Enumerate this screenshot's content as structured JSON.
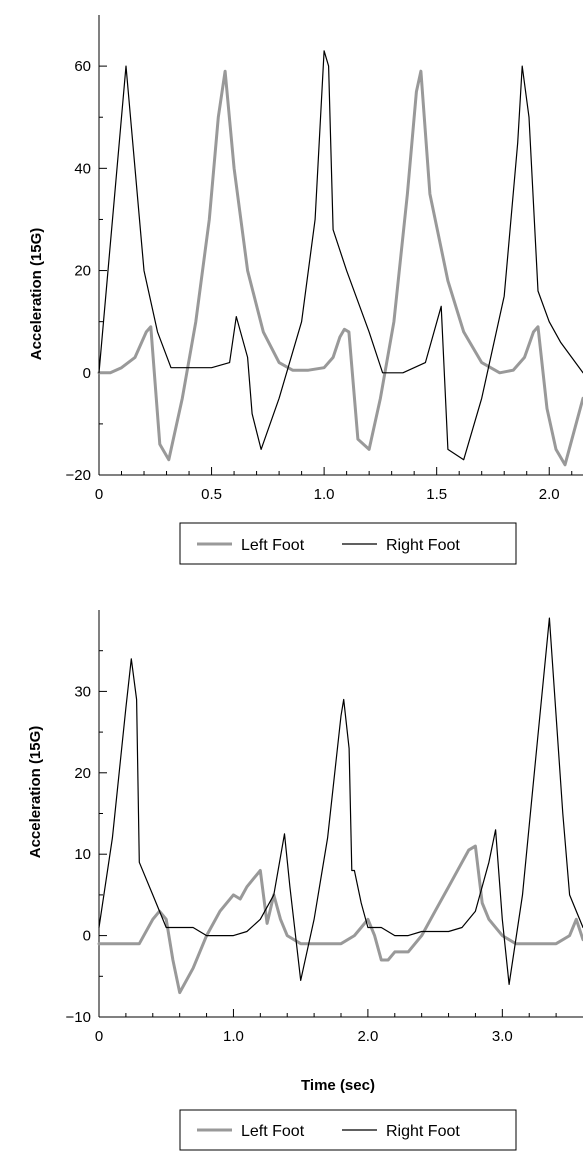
{
  "chart_data": [
    {
      "type": "line",
      "title": "",
      "xlabel": "",
      "ylabel": "Acceleration (15G)",
      "xlim": [
        0,
        2.15
      ],
      "ylim": [
        -20,
        70
      ],
      "grid": false,
      "legend_position": "bottom",
      "x_ticks": [
        0,
        0.5,
        1.0,
        1.5,
        2.0
      ],
      "x_tick_labels": [
        "0",
        "0.5",
        "1.0",
        "1.5",
        "2.0"
      ],
      "y_ticks": [
        -20,
        0,
        20,
        40,
        60
      ],
      "y_tick_labels": [
        "−20",
        "0",
        "20",
        "40",
        "60"
      ],
      "series": [
        {
          "name": "Left Foot",
          "color": "#999999",
          "x": [
            0,
            0.05,
            0.1,
            0.16,
            0.21,
            0.23,
            0.27,
            0.31,
            0.37,
            0.43,
            0.49,
            0.53,
            0.56,
            0.6,
            0.66,
            0.73,
            0.8,
            0.86,
            0.93,
            1.0,
            1.04,
            1.07,
            1.09,
            1.11,
            1.15,
            1.2,
            1.25,
            1.31,
            1.37,
            1.41,
            1.43,
            1.47,
            1.55,
            1.62,
            1.7,
            1.78,
            1.84,
            1.89,
            1.93,
            1.95,
            1.99,
            2.03,
            2.07,
            2.15
          ],
          "y": [
            0,
            0,
            1,
            3,
            8,
            9,
            -14,
            -17,
            -5,
            10,
            30,
            50,
            59,
            40,
            20,
            8,
            2,
            0.5,
            0.5,
            1,
            3,
            7,
            8.5,
            8,
            -13,
            -15,
            -5,
            10,
            35,
            55,
            59,
            35,
            18,
            8,
            2,
            0,
            0.5,
            3,
            8,
            9,
            -7,
            -15,
            -18,
            -5
          ]
        },
        {
          "name": "Right Foot",
          "color": "#000000",
          "x": [
            0,
            0.06,
            0.12,
            0.16,
            0.2,
            0.26,
            0.32,
            0.4,
            0.5,
            0.58,
            0.61,
            0.66,
            0.68,
            0.72,
            0.8,
            0.9,
            0.96,
            1.0,
            1.02,
            1.04,
            1.1,
            1.2,
            1.26,
            1.35,
            1.45,
            1.52,
            1.55,
            1.62,
            1.7,
            1.8,
            1.86,
            1.88,
            1.91,
            1.95,
            2.0,
            2.05,
            2.1,
            2.15
          ],
          "y": [
            0,
            30,
            60,
            40,
            20,
            8,
            1,
            1,
            1,
            2,
            11,
            3,
            -8,
            -15,
            -5,
            10,
            30,
            63,
            60,
            28,
            20,
            8,
            0,
            0,
            2,
            13,
            -15,
            -17,
            -5,
            15,
            45,
            60,
            50,
            16,
            10,
            6,
            3,
            0
          ]
        }
      ]
    },
    {
      "type": "line",
      "title": "",
      "xlabel": "Time (sec)",
      "ylabel": "Acceleration (15G)",
      "xlim": [
        0,
        3.6
      ],
      "ylim": [
        -10,
        40
      ],
      "grid": false,
      "legend_position": "bottom",
      "x_ticks": [
        0,
        1.0,
        2.0,
        3.0
      ],
      "x_tick_labels": [
        "0",
        "1.0",
        "2.0",
        "3.0"
      ],
      "y_ticks": [
        -10,
        0,
        10,
        20,
        30
      ],
      "y_tick_labels": [
        "−10",
        "0",
        "10",
        "20",
        "30"
      ],
      "series": [
        {
          "name": "Left Foot",
          "color": "#999999",
          "x": [
            0,
            0.2,
            0.3,
            0.4,
            0.45,
            0.5,
            0.55,
            0.6,
            0.7,
            0.8,
            0.9,
            1.0,
            1.05,
            1.1,
            1.15,
            1.2,
            1.25,
            1.3,
            1.35,
            1.4,
            1.5,
            1.6,
            1.8,
            1.9,
            1.95,
            2.0,
            2.05,
            2.1,
            2.15,
            2.2,
            2.3,
            2.4,
            2.5,
            2.6,
            2.7,
            2.75,
            2.8,
            2.85,
            2.9,
            3.0,
            3.1,
            3.2,
            3.4,
            3.5,
            3.55,
            3.6
          ],
          "y": [
            -1,
            -1,
            -1,
            2,
            3,
            2,
            -3,
            -7,
            -4,
            0,
            3,
            5,
            4.5,
            6,
            7,
            8,
            1.5,
            5,
            2,
            0,
            -1,
            -1,
            -1,
            0,
            1,
            2,
            0,
            -3,
            -3,
            -2,
            -2,
            0,
            3,
            6,
            9,
            10.5,
            11,
            4,
            2,
            0,
            -1,
            -1,
            -1,
            0,
            2,
            -0.5
          ]
        },
        {
          "name": "Right Foot",
          "color": "#000000",
          "x": [
            0,
            0.1,
            0.2,
            0.24,
            0.28,
            0.3,
            0.4,
            0.5,
            0.6,
            0.7,
            0.8,
            0.9,
            1.0,
            1.1,
            1.2,
            1.3,
            1.38,
            1.42,
            1.5,
            1.6,
            1.7,
            1.8,
            1.82,
            1.86,
            1.88,
            1.9,
            1.95,
            2.0,
            2.1,
            2.2,
            2.3,
            2.4,
            2.5,
            2.6,
            2.7,
            2.8,
            2.9,
            2.95,
            3.0,
            3.05,
            3.15,
            3.25,
            3.35,
            3.45,
            3.5,
            3.6
          ],
          "y": [
            1,
            12,
            28,
            34,
            29,
            9,
            5,
            1,
            1,
            1,
            0,
            0,
            0,
            0.5,
            2,
            5,
            12.5,
            6,
            -5.5,
            2,
            12,
            27,
            29,
            23,
            8,
            8,
            4,
            1,
            1,
            0,
            0,
            0.5,
            0.5,
            0.5,
            1,
            3,
            9,
            13,
            2,
            -6,
            5,
            22,
            39,
            15,
            5,
            1
          ]
        }
      ]
    }
  ],
  "legends": [
    {
      "items": [
        {
          "label": "Left Foot"
        },
        {
          "label": "Right Foot"
        }
      ]
    },
    {
      "items": [
        {
          "label": "Left Foot"
        },
        {
          "label": "Right Foot"
        }
      ]
    }
  ]
}
